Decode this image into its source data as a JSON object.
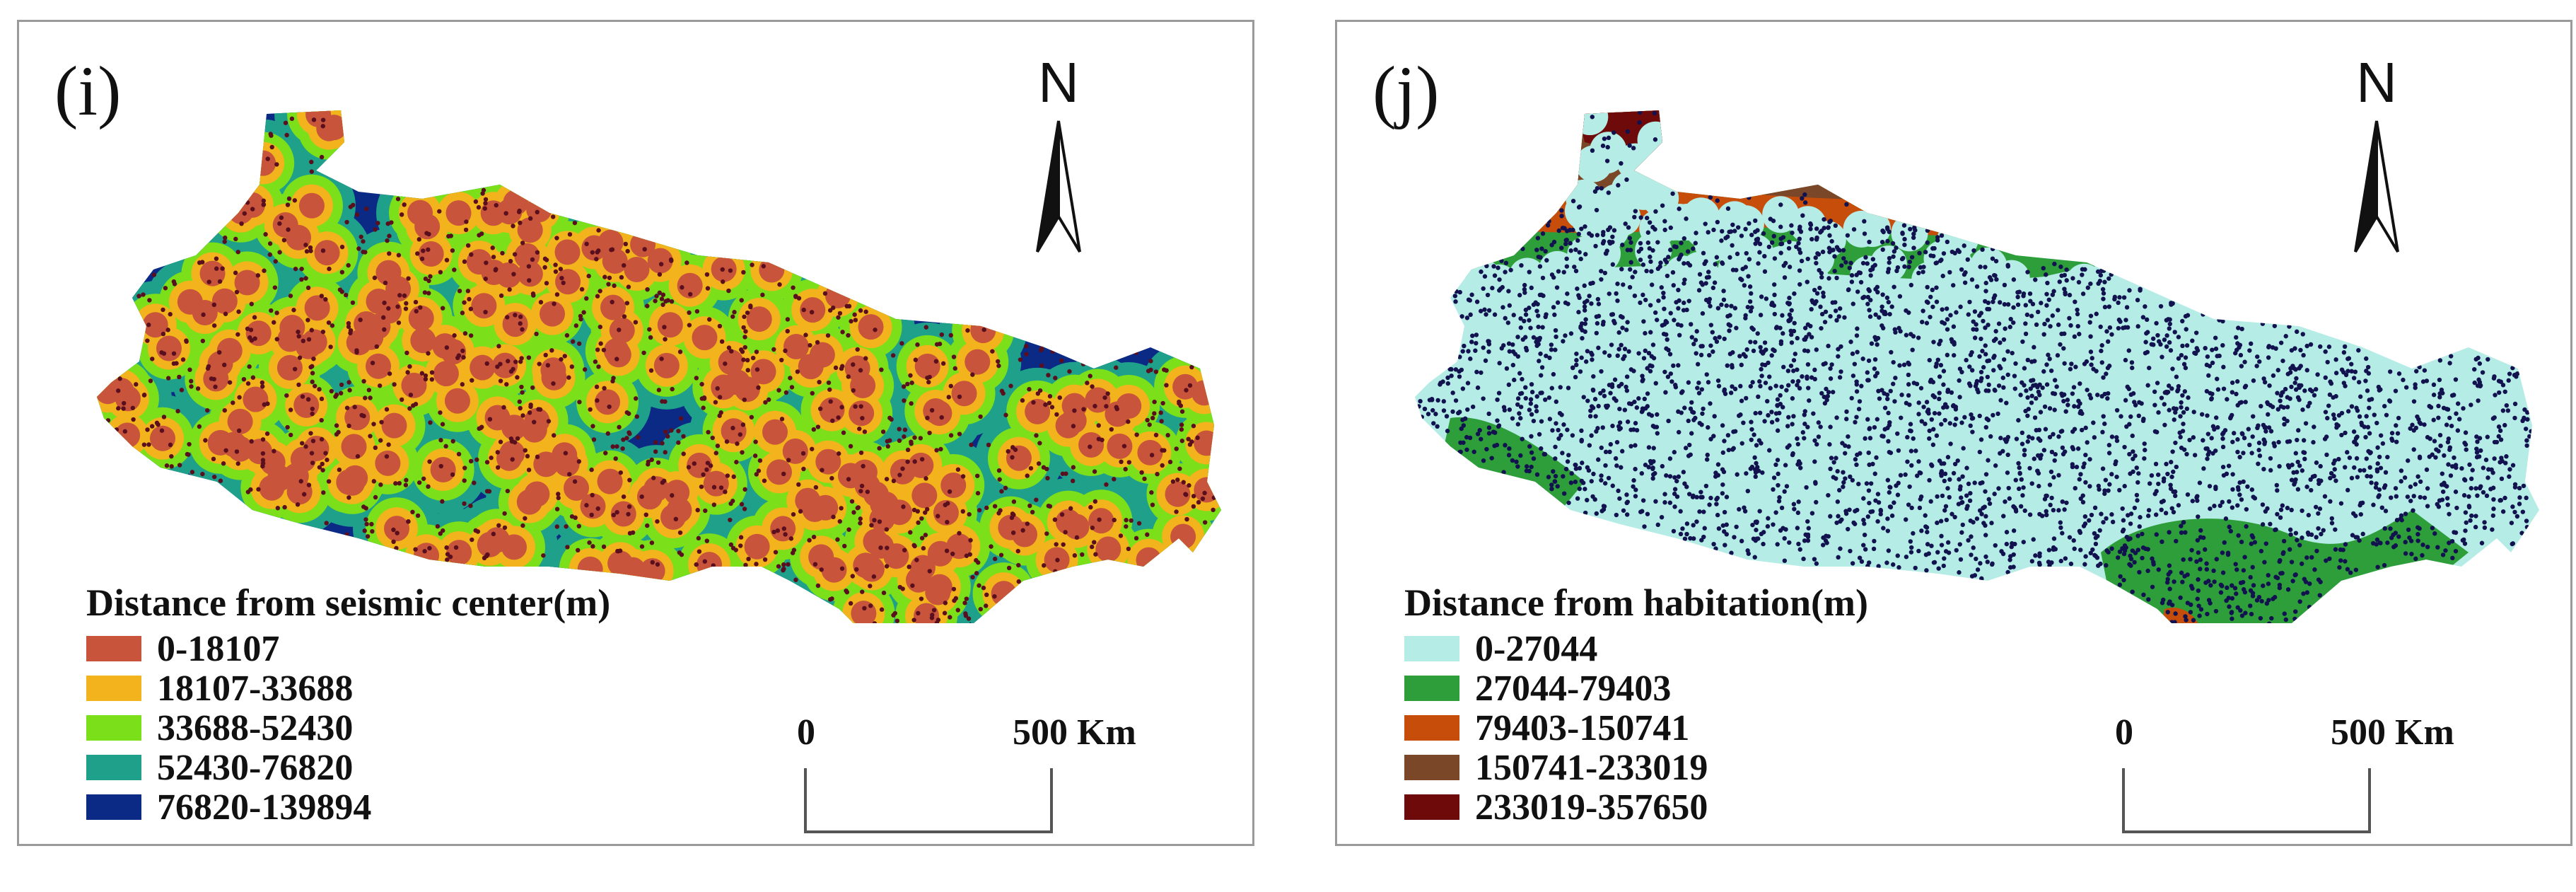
{
  "panels": [
    {
      "label": "(i)",
      "north_label": "N",
      "legend_title": "Distance from seismic center(m)",
      "legend": [
        {
          "label": "0-18107",
          "color": "#c8543c"
        },
        {
          "label": "18107-33688",
          "color": "#f2b31c"
        },
        {
          "label": "33688-52430",
          "color": "#7be01a"
        },
        {
          "label": "52430-76820",
          "color": "#1fa08a"
        },
        {
          "label": "76820-139894",
          "color": "#0b2a86"
        }
      ],
      "scale_zero": "0",
      "scale_max": "500 Km",
      "point_color": "#5a0f1e"
    },
    {
      "label": "(j)",
      "north_label": "N",
      "legend_title": "Distance from habitation(m)",
      "legend": [
        {
          "label": "0-27044",
          "color": "#b5ede6"
        },
        {
          "label": "27044-79403",
          "color": "#2e9e3a"
        },
        {
          "label": "79403-150741",
          "color": "#c64d0a"
        },
        {
          "label": "150741-233019",
          "color": "#7a4828"
        },
        {
          "label": "233019-357650",
          "color": "#6e0a0a"
        }
      ],
      "scale_zero": "0",
      "scale_max": "500 Km",
      "point_color": "#12124f"
    }
  ]
}
